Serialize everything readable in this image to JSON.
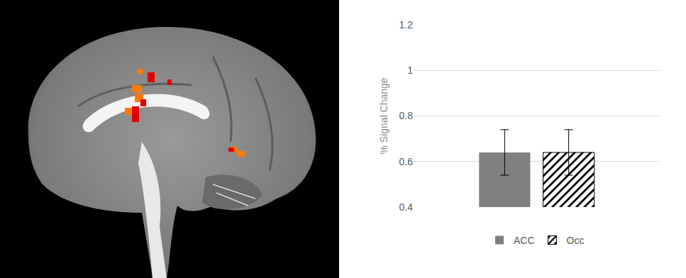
{
  "chart_data": {
    "type": "bar",
    "y_label": "% Signal Change",
    "categories": [
      null
    ],
    "series": [
      {
        "name": "ACC",
        "color": "#808080",
        "marker": "solid",
        "values": [
          0.64
        ],
        "error": [
          0.1
        ]
      },
      {
        "name": "Occ",
        "color": "#000000",
        "marker": "hatched",
        "values": [
          0.64
        ],
        "error": [
          0.1
        ]
      }
    ],
    "ylim": [
      0.4,
      1.2
    ],
    "yticks": [
      0.4,
      0.6,
      0.8,
      1,
      1.2
    ],
    "grid": true,
    "legend": "bottom",
    "tick_labels": "y"
  }
}
